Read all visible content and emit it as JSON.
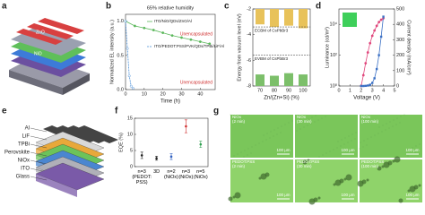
{
  "figure": {
    "panel_labels": [
      "a",
      "b",
      "c",
      "d",
      "e",
      "f",
      "g"
    ],
    "a": {
      "layers": [
        "ZnO",
        "NiO"
      ]
    },
    "e": {
      "layers": [
        "Al",
        "LiF",
        "TPBi",
        "Perovskite",
        "NiOx",
        "ITO",
        "Glass"
      ]
    },
    "g": {
      "images": [
        {
          "title": "NiOx\n(2 min)",
          "scale": "100 μm"
        },
        {
          "title": "NiOx\n(30 min)",
          "scale": "100 μm"
        },
        {
          "title": "NiOx\n(100 min)",
          "scale": "100 μm"
        },
        {
          "title": "PEDOT:PSS\n(2 min)",
          "scale": "100 μm"
        },
        {
          "title": "PEDOT:PSS\n(30 min)",
          "scale": "100 μm"
        },
        {
          "title": "PEDOT:PSS\n(100 min)",
          "scale": "100 μm"
        }
      ]
    }
  },
  "chart_data": [
    {
      "type": "line",
      "title": "65% relative humidity",
      "xlabel": "Time (h)",
      "ylabel": "Normalized EL intensity (a.u.)",
      "xlim": [
        0,
        48
      ],
      "xticks": [
        0,
        10,
        20,
        30,
        40
      ],
      "ylim": [
        0,
        1.1
      ],
      "yticks": [
        {
          "value": 0,
          "label": "0.0"
        },
        0.5,
        {
          "value": 1,
          "label": "1.0"
        }
      ],
      "series": [
        {
          "name": "ITO/NiO/QDs/ZnO/Al",
          "color": "#5cb85c",
          "dashed": false,
          "x": [
            0,
            5,
            10,
            15,
            20,
            25,
            30,
            35,
            40,
            45
          ],
          "values": [
            1.0,
            0.93,
            0.9,
            0.87,
            0.83,
            0.79,
            0.76,
            0.73,
            0.7,
            0.67
          ]
        },
        {
          "name": "ITO/PEDOT:PSS/PVK/QDs/TPBi/LiF/Al",
          "color": "#4a90d9",
          "dashed": true,
          "x": [
            0,
            1,
            2,
            3,
            4
          ],
          "values": [
            1.0,
            0.6,
            0.2,
            0.05,
            0.02
          ]
        }
      ],
      "annotations": [
        "Unencapsulated",
        "Unencapsulated"
      ]
    },
    {
      "type": "bar",
      "xlabel": "Zn/(Zn+Si) (%)",
      "ylabel": "Energy from vacuum level (eV)",
      "xlim": [
        65,
        105
      ],
      "xticks": [
        70,
        80,
        90,
        100
      ],
      "ylim": [
        -8,
        -2
      ],
      "yticks": [
        -8,
        -6,
        -4,
        -2
      ],
      "x": [
        70,
        80,
        90,
        100
      ],
      "series": [
        {
          "color": "#e8c25a",
          "anchor": "top",
          "values": [
            -3.2,
            -3.4,
            -3.3,
            -3.5
          ]
        },
        {
          "color": "#7cbf6a",
          "anchor": "bottom",
          "values": [
            -7.1,
            -7.2,
            -7.0,
            -7.1
          ]
        }
      ],
      "reference_lines": [
        {
          "label": "ECBM of CsPbBr3",
          "value": -3.4
        },
        {
          "label": "EVBM of CsPbBr3",
          "value": -5.6
        }
      ]
    },
    {
      "type": "line",
      "xlabel": "Voltage (V)",
      "ylabel": "Luminance (cd/m²)",
      "y2label": "Current density (mA/cm²)",
      "xlim": [
        0,
        5
      ],
      "xticks": [
        0,
        1,
        2,
        3,
        4,
        5
      ],
      "ylog": true,
      "ylim": [
        1,
        100000
      ],
      "yticks": [
        {
          "value": 1,
          "label": "10⁰"
        },
        {
          "value": 100,
          "label": "10²"
        },
        {
          "value": 10000,
          "label": "10⁴"
        }
      ],
      "y2lim": [
        0,
        500
      ],
      "y2ticks": [
        0,
        100,
        200,
        300,
        400,
        500
      ],
      "series": [
        {
          "color": "#e0457b",
          "axis": "y",
          "x": [
            2.0,
            2.2,
            2.4,
            2.6,
            2.8,
            3.0,
            3.2,
            3.4,
            3.6,
            3.8,
            4.0
          ],
          "values": [
            1,
            5,
            30,
            150,
            600,
            1800,
            4000,
            8000,
            14000,
            20000,
            25000
          ]
        },
        {
          "color": "#3a6fc4",
          "axis": "y2",
          "x": [
            2.0,
            2.2,
            2.4,
            2.6,
            2.8,
            3.0,
            3.2,
            3.4,
            3.6,
            3.8,
            4.0
          ],
          "values": [
            0,
            0,
            1,
            3,
            8,
            20,
            50,
            110,
            200,
            320,
            450
          ]
        }
      ]
    },
    {
      "type": "scatter",
      "ylabel": "EQE (%)",
      "ylim": [
        0,
        15
      ],
      "yticks": [
        0,
        5,
        10,
        15
      ],
      "categories": [
        "n=3\n(PEDOT:\nPSS)",
        "3D",
        "n=2\n(NiOx)",
        "n=3\n(NiOx)",
        "n=5\n(NiOx)"
      ],
      "values": [
        3.5,
        2.6,
        3.1,
        12.5,
        6.9
      ],
      "errors": [
        1.0,
        0.6,
        0.9,
        2.0,
        1.0
      ],
      "colors": [
        "#222222",
        "#222222",
        "#3060c0",
        "#d03030",
        "#30a050"
      ]
    }
  ]
}
